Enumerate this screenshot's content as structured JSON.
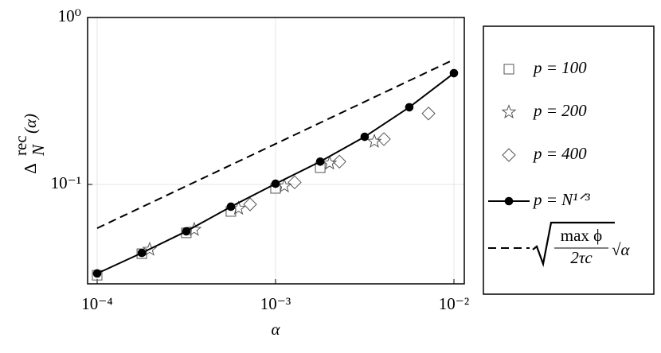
{
  "chart_data": {
    "type": "scatter",
    "xlabel": "α",
    "ylabel": {
      "base": "Δ",
      "sub": "N",
      "sup": "rec",
      "arg": "(α)"
    },
    "log_x": true,
    "log_y": true,
    "grid": true,
    "xlim": [
      8.84e-05,
      0.01143
    ],
    "ylim": [
      0.0254,
      1
    ],
    "xticks": [
      {
        "value": 0.0001,
        "label": "10⁻⁴"
      },
      {
        "value": 0.001,
        "label": "10⁻³"
      },
      {
        "value": 0.01,
        "label": "10⁻²"
      }
    ],
    "yticks": [
      {
        "value": 0.1,
        "label": "10⁻¹"
      },
      {
        "value": 1,
        "label": "10⁰"
      }
    ],
    "legend": "outside-right",
    "series": [
      {
        "name": "p = 100",
        "color": "#555555",
        "marker": "square",
        "x": [
          0.0001,
          0.000178,
          0.000316,
          0.000562,
          0.001,
          0.00178
        ],
        "values": [
          0.0286,
          0.0385,
          0.0513,
          0.0689,
          0.0947,
          0.126
        ]
      },
      {
        "name": "p = 200",
        "color": "#555555",
        "marker": "star",
        "x": [
          0.000197,
          0.00035,
          0.00062,
          0.00112,
          0.00201,
          0.00358
        ],
        "values": [
          0.0408,
          0.0537,
          0.0719,
          0.0978,
          0.134,
          0.181
        ]
      },
      {
        "name": "p = 400",
        "color": "#555555",
        "marker": "diamond",
        "x": [
          0.00072,
          0.00128,
          0.00228,
          0.00405,
          0.0072
        ],
        "values": [
          0.076,
          0.103,
          0.137,
          0.187,
          0.266
        ]
      },
      {
        "name": "p = N¹ᐟ³",
        "color": "#000000",
        "marker": "circle",
        "line": "solid",
        "x": [
          0.0001,
          0.000178,
          0.000316,
          0.000562,
          0.001,
          0.00178,
          0.00316,
          0.00562,
          0.01
        ],
        "values": [
          0.0293,
          0.0389,
          0.0524,
          0.0736,
          0.101,
          0.137,
          0.193,
          0.29,
          0.464
        ]
      },
      {
        "name_parts": {
          "numerator": "max ϕ",
          "denominator": "2τc",
          "factor": "√α"
        },
        "color": "#000000",
        "line": "dashed",
        "x": [
          0.0001,
          0.01
        ],
        "values": [
          0.0547,
          0.56
        ]
      }
    ]
  }
}
